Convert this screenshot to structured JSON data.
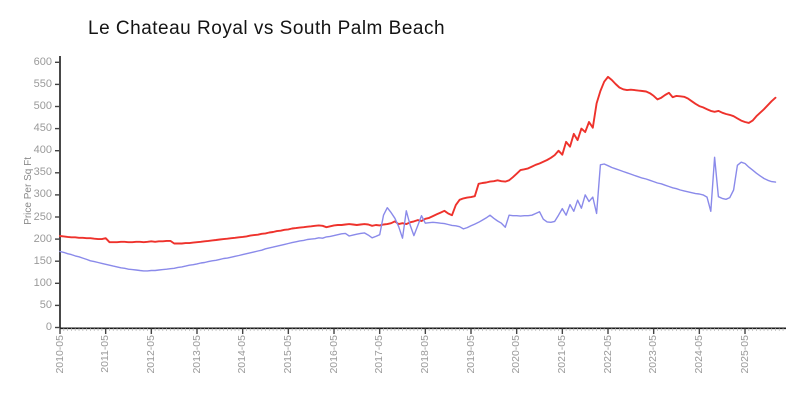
{
  "chart_data": {
    "type": "line",
    "title": "Le Chateau Royal vs South Palm Beach",
    "xlabel": "",
    "ylabel": "Price Per Sq Ft",
    "ylim": [
      0,
      600
    ],
    "ytick_step": 50,
    "ytick_labels": [
      "0",
      "50",
      "100",
      "150",
      "200",
      "250",
      "300",
      "350",
      "400",
      "450",
      "500",
      "550",
      "600"
    ],
    "x_start": "2010-05",
    "x_frequency": "monthly",
    "x_major_tick_labels": [
      "2010-05",
      "2011-05",
      "2012-05",
      "2013-05",
      "2014-05",
      "2015-05",
      "2016-05",
      "2017-05",
      "2018-05",
      "2019-05",
      "2020-05",
      "2021-05",
      "2022-05",
      "2023-05",
      "2024-05",
      "2025-05"
    ],
    "months_per_major_tick": 12,
    "grid": false,
    "legend": "none",
    "style": "xkcd-sketch",
    "axis_color": "#1a1a1a",
    "tick_label_color": "#9a9a9a",
    "series": [
      {
        "name": "Le Chateau Royal",
        "color": "#ee322c",
        "line_width": 1.9,
        "values": [
          207,
          206,
          205,
          204,
          204,
          203,
          203,
          202,
          202,
          201,
          200,
          200,
          202,
          193,
          193,
          193,
          194,
          194,
          193,
          193,
          194,
          194,
          193,
          194,
          195,
          194,
          195,
          195,
          196,
          196,
          190,
          190,
          190,
          191,
          191,
          192,
          193,
          194,
          195,
          196,
          197,
          198,
          199,
          200,
          201,
          202,
          203,
          204,
          205,
          206,
          208,
          209,
          210,
          212,
          213,
          215,
          216,
          218,
          219,
          221,
          222,
          224,
          225,
          226,
          227,
          228,
          229,
          230,
          231,
          230,
          227,
          229,
          231,
          232,
          232,
          233,
          234,
          233,
          232,
          233,
          234,
          233,
          230,
          232,
          231,
          233,
          234,
          236,
          240,
          234,
          236,
          234,
          238,
          240,
          243,
          241,
          246,
          248,
          252,
          256,
          260,
          264,
          258,
          254,
          277,
          289,
          292,
          294,
          295,
          297,
          325,
          327,
          328,
          330,
          331,
          333,
          331,
          330,
          333,
          340,
          348,
          356,
          358,
          360,
          364,
          368,
          371,
          375,
          379,
          384,
          390,
          400,
          391,
          420,
          409,
          438,
          424,
          450,
          442,
          465,
          452,
          507,
          535,
          556,
          567,
          560,
          551,
          543,
          539,
          537,
          538,
          537,
          536,
          535,
          534,
          530,
          524,
          516,
          520,
          526,
          531,
          521,
          524,
          523,
          522,
          518,
          512,
          506,
          501,
          498,
          494,
          490,
          488,
          490,
          486,
          483,
          481,
          478,
          473,
          468,
          465,
          463,
          468,
          478,
          486,
          494,
          503,
          512,
          520
        ]
      },
      {
        "name": "South Palm Beach",
        "color": "#8a8aea",
        "line_width": 1.4,
        "values": [
          172,
          170,
          167,
          165,
          162,
          160,
          157,
          154,
          151,
          149,
          147,
          145,
          143,
          141,
          139,
          137,
          135,
          134,
          132,
          131,
          130,
          129,
          128,
          128,
          129,
          129,
          130,
          131,
          132,
          133,
          134,
          136,
          137,
          139,
          141,
          142,
          144,
          146,
          147,
          149,
          151,
          152,
          154,
          156,
          157,
          159,
          161,
          163,
          165,
          167,
          169,
          171,
          173,
          175,
          178,
          180,
          182,
          184,
          186,
          188,
          190,
          192,
          194,
          196,
          197,
          199,
          200,
          201,
          203,
          202,
          205,
          206,
          208,
          210,
          212,
          213,
          207,
          209,
          211,
          213,
          214,
          209,
          203,
          206,
          210,
          254,
          271,
          260,
          247,
          228,
          202,
          264,
          232,
          208,
          230,
          253,
          236,
          237,
          238,
          237,
          236,
          235,
          233,
          231,
          230,
          228,
          223,
          226,
          230,
          234,
          238,
          243,
          248,
          254,
          247,
          241,
          236,
          227,
          254,
          253,
          253,
          252,
          253,
          253,
          254,
          258,
          262,
          245,
          239,
          238,
          240,
          254,
          269,
          254,
          278,
          263,
          288,
          270,
          300,
          285,
          295,
          258,
          368,
          370,
          366,
          362,
          359,
          356,
          353,
          350,
          347,
          344,
          341,
          338,
          336,
          333,
          330,
          327,
          325,
          322,
          319,
          316,
          314,
          311,
          309,
          307,
          305,
          303,
          302,
          300,
          295,
          263,
          385,
          296,
          292,
          290,
          294,
          311,
          367,
          374,
          371,
          363,
          356,
          349,
          343,
          337,
          333,
          330,
          329
        ]
      }
    ]
  }
}
